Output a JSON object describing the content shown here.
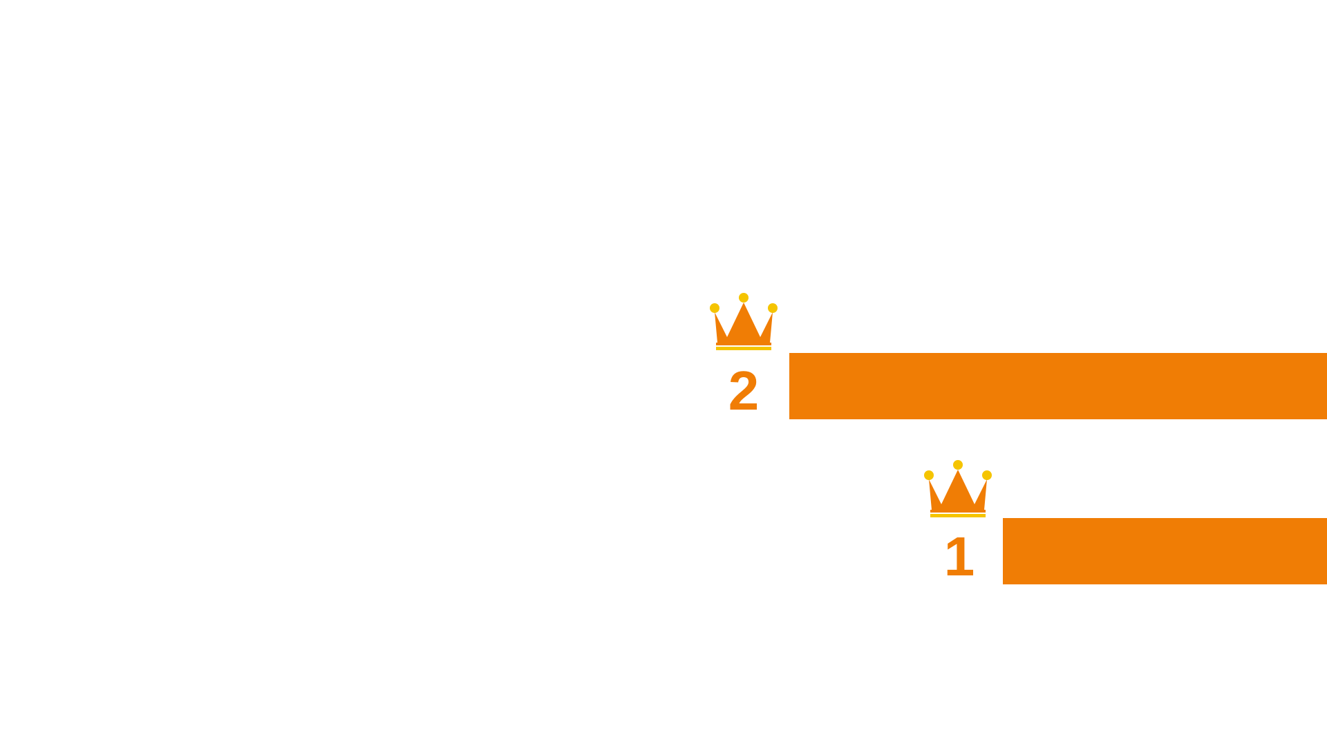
{
  "ranking": {
    "entries": [
      {
        "rank": "2",
        "icon": "crown-icon"
      },
      {
        "rank": "1",
        "icon": "crown-icon"
      }
    ]
  },
  "colors": {
    "accent": "#f07d05",
    "crown_jewel": "#f5c400"
  }
}
